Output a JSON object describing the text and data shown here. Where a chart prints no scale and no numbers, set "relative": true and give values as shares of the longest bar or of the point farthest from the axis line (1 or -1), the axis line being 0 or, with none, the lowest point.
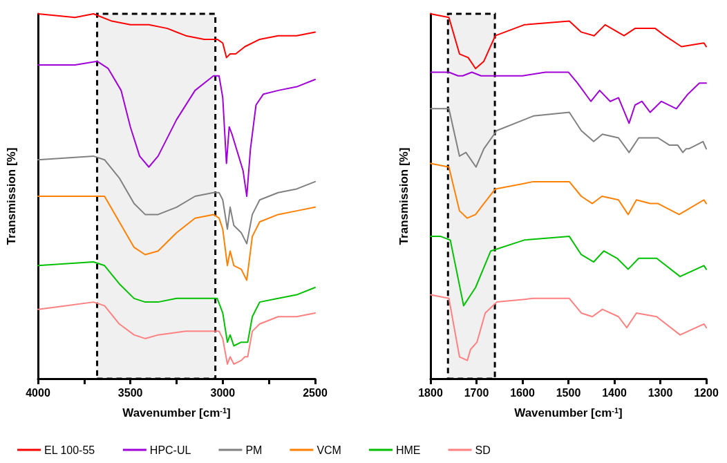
{
  "chart_data": [
    {
      "type": "line",
      "relative": true,
      "xlabel": "Wavenumber [cm$^{-1}$]",
      "ylabel": "Transmission [%]",
      "xlim": [
        4000,
        2500
      ],
      "xticks": [
        4000,
        {
          "value": 3750,
          "label": null
        },
        3500,
        {
          "value": 3250,
          "label": null
        },
        3000,
        {
          "value": 2750,
          "label": null
        },
        2500
      ],
      "legend": "bottom",
      "marker": "none",
      "grid": false,
      "bands": [
        {
          "axis": "x",
          "from": 3680,
          "to": 3040,
          "color": "#000000"
        }
      ],
      "series": [
        {
          "name": "EL 100-55",
          "color": "#ff0000",
          "x": [
            4000,
            3800,
            3700,
            3600,
            3500,
            3400,
            3300,
            3200,
            3100,
            3030,
            3000,
            2980,
            2960,
            2930,
            2880,
            2800,
            2700,
            2600,
            2500
          ],
          "values": [
            1.0,
            0.99,
            1.0,
            0.98,
            0.97,
            0.97,
            0.96,
            0.94,
            0.93,
            0.93,
            0.92,
            0.88,
            0.89,
            0.89,
            0.91,
            0.93,
            0.94,
            0.94,
            0.95
          ]
        },
        {
          "name": "HPC-UL",
          "color": "#a000d8",
          "x": [
            4000,
            3800,
            3680,
            3620,
            3550,
            3500,
            3450,
            3400,
            3350,
            3250,
            3150,
            3050,
            3020,
            3000,
            2980,
            2965,
            2950,
            2920,
            2890,
            2870,
            2850,
            2820,
            2780,
            2700,
            2600,
            2500
          ],
          "values": [
            0.86,
            0.86,
            0.87,
            0.85,
            0.79,
            0.69,
            0.61,
            0.58,
            0.61,
            0.71,
            0.79,
            0.83,
            0.83,
            0.77,
            0.59,
            0.69,
            0.67,
            0.62,
            0.57,
            0.5,
            0.63,
            0.75,
            0.78,
            0.79,
            0.8,
            0.82
          ]
        },
        {
          "name": "PM",
          "color": "#808080",
          "x": [
            4000,
            3700,
            3640,
            3560,
            3480,
            3420,
            3350,
            3250,
            3150,
            3050,
            3020,
            3000,
            2975,
            2960,
            2940,
            2900,
            2870,
            2840,
            2800,
            2700,
            2600,
            2500
          ],
          "values": [
            0.6,
            0.61,
            0.6,
            0.55,
            0.48,
            0.45,
            0.45,
            0.47,
            0.5,
            0.51,
            0.51,
            0.49,
            0.41,
            0.47,
            0.42,
            0.4,
            0.37,
            0.45,
            0.49,
            0.51,
            0.52,
            0.54
          ]
        },
        {
          "name": "VCM",
          "color": "#ff8000",
          "x": [
            4000,
            3700,
            3640,
            3560,
            3480,
            3420,
            3350,
            3250,
            3150,
            3050,
            3020,
            3000,
            2975,
            2960,
            2940,
            2900,
            2870,
            2840,
            2800,
            2700,
            2600,
            2500
          ],
          "values": [
            0.5,
            0.5,
            0.5,
            0.43,
            0.36,
            0.34,
            0.35,
            0.4,
            0.44,
            0.45,
            0.44,
            0.41,
            0.31,
            0.35,
            0.31,
            0.3,
            0.27,
            0.39,
            0.43,
            0.45,
            0.46,
            0.47
          ]
        },
        {
          "name": "HME",
          "color": "#00c000",
          "x": [
            4000,
            3700,
            3640,
            3560,
            3480,
            3420,
            3350,
            3250,
            3100,
            3030,
            3000,
            2975,
            2960,
            2940,
            2900,
            2880,
            2865,
            2840,
            2800,
            2700,
            2600,
            2500
          ],
          "values": [
            0.31,
            0.32,
            0.31,
            0.26,
            0.22,
            0.21,
            0.21,
            0.22,
            0.22,
            0.22,
            0.18,
            0.1,
            0.12,
            0.09,
            0.1,
            0.1,
            0.1,
            0.17,
            0.21,
            0.22,
            0.23,
            0.25
          ]
        },
        {
          "name": "SD",
          "color": "#ff8080",
          "x": [
            4000,
            3850,
            3700,
            3640,
            3560,
            3480,
            3420,
            3350,
            3200,
            3050,
            3020,
            3000,
            2975,
            2960,
            2940,
            2900,
            2880,
            2865,
            2840,
            2800,
            2700,
            2600,
            2500
          ],
          "values": [
            0.19,
            0.2,
            0.21,
            0.2,
            0.15,
            0.12,
            0.11,
            0.12,
            0.13,
            0.13,
            0.13,
            0.11,
            0.04,
            0.06,
            0.04,
            0.05,
            0.06,
            0.06,
            0.13,
            0.15,
            0.17,
            0.17,
            0.18
          ]
        }
      ]
    },
    {
      "type": "line",
      "relative": true,
      "xlabel": "Wavenumber [cm$^{-1}$]",
      "ylabel": "Transmission [%]",
      "xlim": [
        1800,
        1200
      ],
      "xticks": [
        1800,
        1700,
        1600,
        1500,
        1400,
        1300,
        1200
      ],
      "marker": "none",
      "grid": false,
      "bands": [
        {
          "axis": "x",
          "from": 1762,
          "to": 1660,
          "color": "#000000"
        }
      ],
      "series": [
        {
          "color": "#ff0000",
          "x": [
            1800,
            1760,
            1737,
            1718,
            1702,
            1684,
            1659,
            1596,
            1498,
            1472,
            1444,
            1420,
            1379,
            1355,
            1311,
            1290,
            1254,
            1205,
            1200
          ],
          "values": [
            1.0,
            0.99,
            0.89,
            0.88,
            0.85,
            0.87,
            0.94,
            0.97,
            0.98,
            0.95,
            0.94,
            0.97,
            0.94,
            0.96,
            0.96,
            0.94,
            0.91,
            0.92,
            0.91
          ]
        },
        {
          "color": "#a000d8",
          "x": [
            1800,
            1760,
            1740,
            1730,
            1710,
            1690,
            1650,
            1600,
            1550,
            1500,
            1480,
            1451,
            1432,
            1409,
            1391,
            1368,
            1355,
            1340,
            1322,
            1298,
            1265,
            1240,
            1215,
            1200
          ],
          "values": [
            0.84,
            0.84,
            0.83,
            0.83,
            0.84,
            0.83,
            0.83,
            0.83,
            0.84,
            0.84,
            0.81,
            0.76,
            0.79,
            0.76,
            0.77,
            0.7,
            0.75,
            0.76,
            0.73,
            0.76,
            0.74,
            0.78,
            0.81,
            0.81
          ]
        },
        {
          "color": "#808080",
          "x": [
            1800,
            1760,
            1737,
            1723,
            1701,
            1684,
            1656,
            1576,
            1498,
            1472,
            1445,
            1426,
            1391,
            1368,
            1347,
            1322,
            1305,
            1280,
            1262,
            1251,
            1244,
            1238,
            1207,
            1200
          ],
          "values": [
            0.74,
            0.74,
            0.61,
            0.62,
            0.58,
            0.63,
            0.68,
            0.72,
            0.73,
            0.68,
            0.65,
            0.67,
            0.66,
            0.62,
            0.66,
            0.66,
            0.66,
            0.64,
            0.64,
            0.62,
            0.63,
            0.63,
            0.65,
            0.63
          ]
        },
        {
          "color": "#ff8000",
          "x": [
            1800,
            1760,
            1737,
            1720,
            1702,
            1684,
            1659,
            1576,
            1498,
            1472,
            1448,
            1427,
            1391,
            1370,
            1352,
            1322,
            1305,
            1259,
            1205,
            1200
          ],
          "values": [
            0.59,
            0.58,
            0.46,
            0.44,
            0.45,
            0.48,
            0.52,
            0.54,
            0.54,
            0.5,
            0.48,
            0.5,
            0.49,
            0.45,
            0.49,
            0.48,
            0.48,
            0.45,
            0.49,
            0.48
          ]
        },
        {
          "color": "#00c000",
          "x": [
            1800,
            1778,
            1757,
            1728,
            1702,
            1669,
            1596,
            1498,
            1472,
            1445,
            1423,
            1394,
            1370,
            1347,
            1308,
            1257,
            1205,
            1200
          ],
          "values": [
            0.39,
            0.39,
            0.38,
            0.2,
            0.25,
            0.35,
            0.38,
            0.39,
            0.34,
            0.32,
            0.35,
            0.33,
            0.3,
            0.33,
            0.33,
            0.28,
            0.31,
            0.3
          ]
        },
        {
          "color": "#ff8080",
          "x": [
            1800,
            1760,
            1737,
            1720,
            1713,
            1699,
            1681,
            1656,
            1576,
            1498,
            1472,
            1448,
            1426,
            1391,
            1373,
            1352,
            1308,
            1257,
            1205,
            1200
          ],
          "values": [
            0.23,
            0.22,
            0.06,
            0.05,
            0.08,
            0.1,
            0.18,
            0.21,
            0.22,
            0.22,
            0.18,
            0.17,
            0.19,
            0.17,
            0.14,
            0.18,
            0.17,
            0.12,
            0.15,
            0.14
          ]
        }
      ]
    }
  ]
}
